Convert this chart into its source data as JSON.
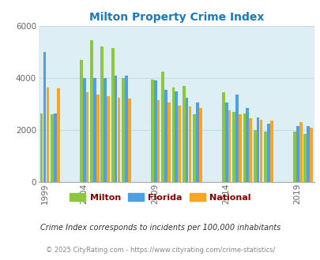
{
  "title": "Milton Property Crime Index",
  "title_color": "#1a7abf",
  "plot_bg_color": "#ddeef5",
  "fig_bg_color": "#ffffff",
  "ylim": [
    0,
    6000
  ],
  "yticks": [
    0,
    2000,
    4000,
    6000
  ],
  "grid_color": "#c8dde8",
  "legend_labels": [
    "Milton",
    "Florida",
    "National"
  ],
  "legend_colors": [
    "#8dc63f",
    "#4fa0e0",
    "#f5a623"
  ],
  "legend_text_color": "#8b0000",
  "footnote1": "Crime Index corresponds to incidents per 100,000 inhabitants",
  "footnote2": "© 2025 CityRating.com - https://www.cityrating.com/crime-statistics/",
  "years": [
    1999,
    2000,
    2004,
    2005,
    2006,
    2007,
    2008,
    2009,
    2010,
    2011,
    2012,
    2013,
    2014,
    2015,
    2016,
    2017,
    2018,
    2019,
    2020
  ],
  "tick_years": [
    1999,
    2004,
    2009,
    2014,
    2019
  ],
  "milton": [
    2650,
    2600,
    4700,
    5450,
    5200,
    5150,
    4000,
    3950,
    4250,
    3650,
    3700,
    2600,
    3450,
    2700,
    2650,
    2000,
    1950,
    1950,
    1850
  ],
  "florida": [
    5000,
    2650,
    4000,
    4000,
    4000,
    4100,
    4100,
    3900,
    3550,
    3500,
    3250,
    3050,
    3050,
    3350,
    2850,
    2500,
    2250,
    2150,
    2150
  ],
  "national": [
    3650,
    3600,
    3450,
    3350,
    3300,
    3250,
    3200,
    3150,
    3050,
    2950,
    2900,
    2850,
    2750,
    2600,
    2450,
    2400,
    2350,
    2300,
    2100
  ]
}
